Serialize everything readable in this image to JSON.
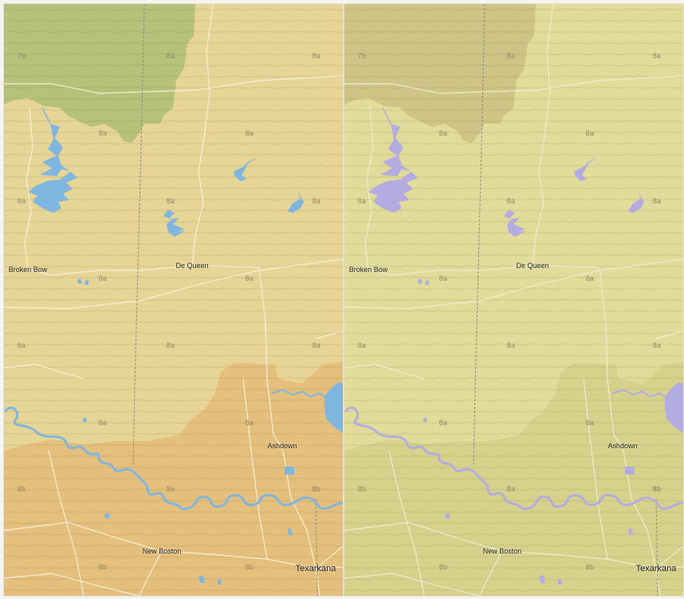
{
  "panels": [
    {
      "id": "left",
      "style": "colored",
      "colors": {
        "base": "#e7d596",
        "zone7b": "#b6c27a",
        "zone8b": "#e5bf7c",
        "water": "#7fb6df",
        "road": "#f6f0da",
        "border": "#8b8a86"
      }
    },
    {
      "id": "right",
      "style": "muted",
      "colors": {
        "base": "#e1dc9a",
        "zone7b": "#cdc486",
        "zone8b": "#d6d28c",
        "water": "#b3ace0",
        "road": "#f0ecd4",
        "border": "#8b8a86"
      }
    }
  ],
  "zone_labels": [
    "7b",
    "8a",
    "8a",
    "8a",
    "8a",
    "8a",
    "8a",
    "8a",
    "8a",
    "8a",
    "8a",
    "8a",
    "8a",
    "8a",
    "8a",
    "8b",
    "8a",
    "8b",
    "8b",
    "8b",
    "8b"
  ],
  "cities": [
    "Broken Bow",
    "De Queen",
    "Ashdown",
    "New Boston",
    "Texarkana"
  ]
}
